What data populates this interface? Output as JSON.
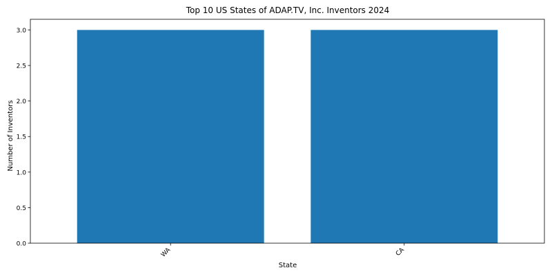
{
  "chart_data": {
    "type": "bar",
    "title": "Top 10 US States of ADAP.TV, Inc. Inventors 2024",
    "xlabel": "State",
    "ylabel": "Number of Inventors",
    "categories": [
      "WA",
      "CA"
    ],
    "values": [
      3,
      3
    ],
    "ylim": [
      0,
      3.15
    ],
    "yticks": [
      "0.0",
      "0.5",
      "1.0",
      "1.5",
      "2.0",
      "2.5",
      "3.0"
    ],
    "grid": false,
    "legend": "none",
    "bar_color": "#1f77b4"
  }
}
